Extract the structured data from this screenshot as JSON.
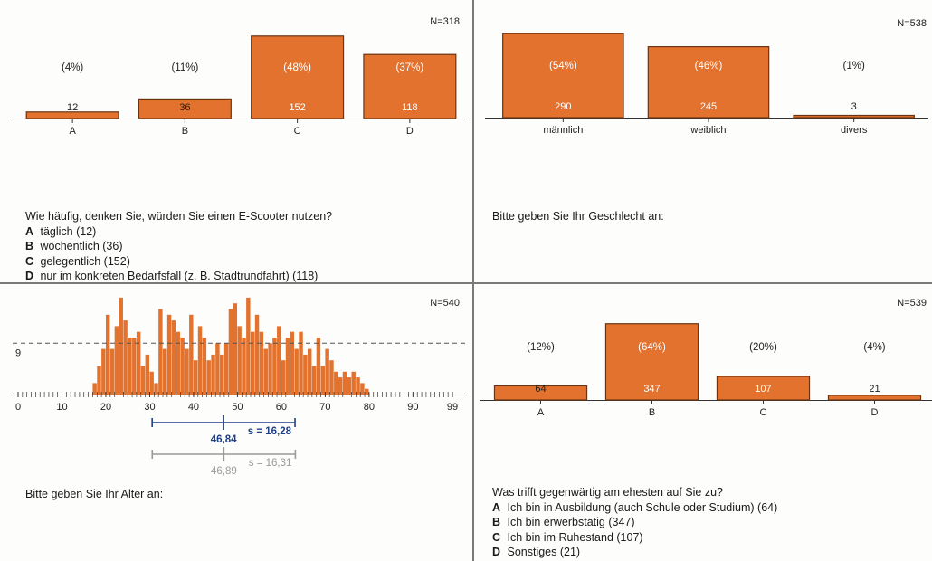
{
  "chart_data": [
    {
      "type": "bar",
      "n_label": "N=318",
      "categories": [
        "A",
        "B",
        "C",
        "D"
      ],
      "values": [
        12,
        36,
        152,
        118
      ],
      "percent_labels": [
        "(4%)",
        "(11%)",
        "(48%)",
        "(37%)"
      ],
      "question": "Wie häufig, denken Sie, würden Sie einen E-Scooter nutzen?",
      "options": [
        {
          "key": "A",
          "text": "täglich (12)"
        },
        {
          "key": "B",
          "text": "wöchentlich (36)"
        },
        {
          "key": "C",
          "text": "gelegentlich (152)"
        },
        {
          "key": "D",
          "text": "nur im konkreten Bedarfsfall (z. B. Stadtrundfahrt) (118)"
        }
      ],
      "bar_color": "#e2722d",
      "ylim": [
        0,
        160
      ]
    },
    {
      "type": "bar",
      "n_label": "N=538",
      "categories": [
        "männlich",
        "weiblich",
        "divers"
      ],
      "values": [
        290,
        245,
        3
      ],
      "percent_labels": [
        "(54%)",
        "(46%)",
        "(1%)"
      ],
      "question": "Bitte geben Sie Ihr Geschlecht an:",
      "bar_color": "#e2722d",
      "ylim": [
        0,
        300
      ]
    },
    {
      "type": "histogram",
      "n_label": "N=540",
      "x_ticks": [
        0,
        10,
        20,
        30,
        40,
        50,
        60,
        70,
        80,
        90,
        99
      ],
      "xlim": [
        0,
        99
      ],
      "reference_line": {
        "value": 9,
        "label": "9"
      },
      "bins": [
        17,
        18,
        19,
        20,
        21,
        22,
        23,
        24,
        25,
        26,
        27,
        28,
        29,
        30,
        31,
        32,
        33,
        34,
        35,
        36,
        37,
        38,
        39,
        40,
        41,
        42,
        43,
        44,
        45,
        46,
        47,
        48,
        49,
        50,
        51,
        52,
        53,
        54,
        55,
        56,
        57,
        58,
        59,
        60,
        61,
        62,
        63,
        64,
        65,
        66,
        67,
        68,
        69,
        70,
        71,
        72,
        73,
        74,
        75,
        76,
        77,
        78,
        79
      ],
      "values": [
        2,
        5,
        8,
        14,
        8,
        12,
        17,
        13,
        10,
        10,
        11,
        5,
        7,
        4,
        2,
        15,
        8,
        14,
        13,
        11,
        10,
        8,
        14,
        6,
        12,
        10,
        6,
        7,
        9,
        7,
        9,
        15,
        16,
        12,
        10,
        17,
        11,
        14,
        11,
        8,
        9,
        10,
        12,
        6,
        10,
        11,
        8,
        11,
        7,
        8,
        5,
        10,
        5,
        8,
        6,
        4,
        3,
        4,
        3,
        4,
        3,
        2,
        1
      ],
      "mean": {
        "value": 46.84,
        "label": "46,84",
        "sd_label": "s = 16,28",
        "sd": 16.28,
        "color": "#1f3f86"
      },
      "reference": {
        "value": 46.89,
        "label": "46,89",
        "sd_label": "s = 16,31",
        "sd": 16.31,
        "color": "#9a9a9a"
      },
      "question": "Bitte geben Sie Ihr Alter an:",
      "bar_color": "#e2722d"
    },
    {
      "type": "bar",
      "n_label": "N=539",
      "categories": [
        "A",
        "B",
        "C",
        "D"
      ],
      "values": [
        64,
        347,
        107,
        21
      ],
      "percent_labels": [
        "(12%)",
        "(64%)",
        "(20%)",
        "(4%)"
      ],
      "question": "Was trifft gegenwärtig am ehesten auf Sie zu?",
      "options": [
        {
          "key": "A",
          "text": "Ich bin in Ausbildung (auch Schule oder Studium) (64)"
        },
        {
          "key": "B",
          "text": "Ich bin erwerbstätig (347)"
        },
        {
          "key": "C",
          "text": "Ich bin im Ruhestand (107)"
        },
        {
          "key": "D",
          "text": "Sonstiges (21)"
        }
      ],
      "bar_color": "#e2722d",
      "ylim": [
        0,
        350
      ]
    }
  ]
}
